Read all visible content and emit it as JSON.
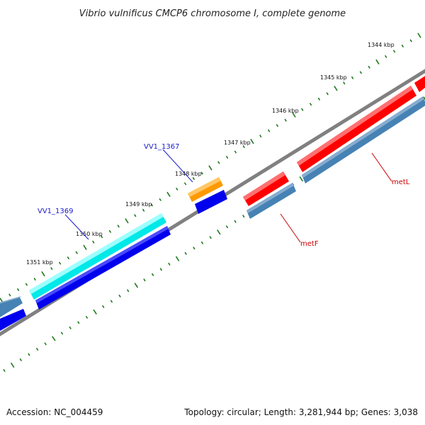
{
  "title": "Vibrio vulnificus CMCP6 chromosome I, complete genome",
  "footer": {
    "accession": "Accession: NC_004459",
    "stats": "Topology: circular; Length: 3,281,944 bp; Genes: 3,038"
  },
  "ticks": [
    {
      "label": "1344 kbp"
    },
    {
      "label": "1345 kbp"
    },
    {
      "label": "1346 kbp"
    },
    {
      "label": "1347 kbp"
    },
    {
      "label": "1348 kbp"
    },
    {
      "label": "1349 kbp"
    },
    {
      "label": "1350 kbp"
    },
    {
      "label": "1351 kbp"
    }
  ],
  "genes": [
    {
      "name": "VV1_1367",
      "color": "#1a1acc"
    },
    {
      "name": "VV1_1369",
      "color": "#1a1acc"
    },
    {
      "name": "metF",
      "color": "#cc0000"
    },
    {
      "name": "metL",
      "color": "#cc0000"
    }
  ],
  "colors": {
    "backbone": "#808080",
    "tick": "#1e7a1e",
    "cds": "#4682b4",
    "gene_red": "#ff0000",
    "gene_cyan": "#00ffff",
    "gene_orange": "#ff9900",
    "gene_blue": "#0000ff"
  }
}
